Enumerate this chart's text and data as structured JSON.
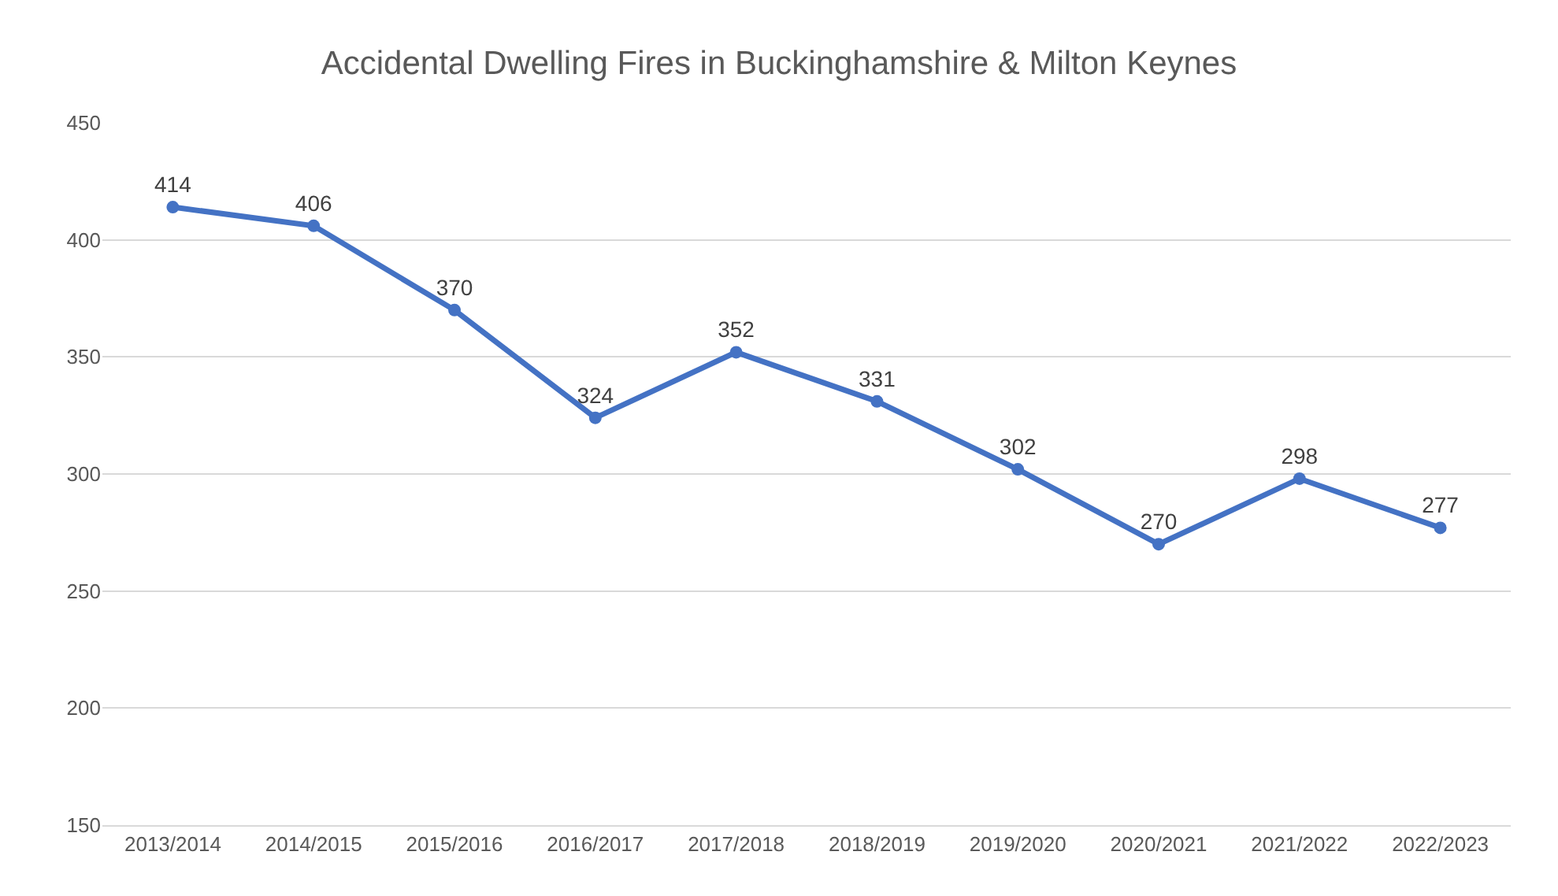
{
  "chart_data": {
    "type": "line",
    "title": "Accidental Dwelling Fires in Buckinghamshire & Milton Keynes",
    "categories": [
      "2013/2014",
      "2014/2015",
      "2015/2016",
      "2016/2017",
      "2017/2018",
      "2018/2019",
      "2019/2020",
      "2020/2021",
      "2021/2022",
      "2022/2023"
    ],
    "series": [
      {
        "color": "#4472c4",
        "values": [
          414,
          406,
          370,
          324,
          352,
          331,
          302,
          270,
          298,
          277
        ]
      }
    ],
    "ylim": [
      150,
      450
    ],
    "yticks": [
      150,
      200,
      250,
      300,
      350,
      400,
      450
    ],
    "grid": "y",
    "marker": "circle",
    "line_style": "solid",
    "data_labels": true,
    "legend": false
  }
}
